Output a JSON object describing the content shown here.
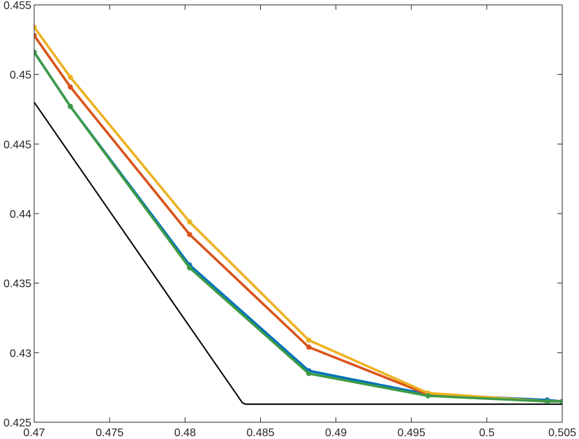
{
  "chart_data": {
    "type": "line",
    "title": "",
    "xlabel": "",
    "ylabel": "",
    "xlim": [
      0.47,
      0.505
    ],
    "ylim": [
      0.425,
      0.455
    ],
    "grid": false,
    "box": true,
    "x_ticks": [
      0.47,
      0.475,
      0.48,
      0.485,
      0.49,
      0.495,
      0.5,
      0.505
    ],
    "x_tick_labels": [
      "0.47",
      "0.475",
      "0.48",
      "0.485",
      "0.49",
      "0.495",
      "0.5",
      "0.505"
    ],
    "y_ticks": [
      0.425,
      0.43,
      0.435,
      0.44,
      0.445,
      0.45,
      0.455
    ],
    "y_tick_labels": [
      "0.425",
      "0.43",
      "0.435",
      "0.44",
      "0.445",
      "0.45",
      "0.455"
    ],
    "series": [
      {
        "color": "#000000",
        "markers": false,
        "line_width": 2,
        "x": [
          0.47,
          0.4838,
          0.484,
          0.505
        ],
        "y": [
          0.448,
          0.4264,
          0.4263,
          0.4263
        ]
      },
      {
        "color": "#0072BD",
        "markers": true,
        "line_width": 3.5,
        "x": [
          0.47,
          0.4724,
          0.4803,
          0.4882,
          0.4961,
          0.504,
          0.505
        ],
        "y": [
          0.4516,
          0.4477,
          0.4363,
          0.4287,
          0.427,
          0.4266,
          0.4265
        ]
      },
      {
        "color": "#D95319",
        "markers": true,
        "line_width": 3.5,
        "x": [
          0.47,
          0.4724,
          0.4803,
          0.4882,
          0.4961,
          0.504,
          0.505
        ],
        "y": [
          0.4528,
          0.4491,
          0.4385,
          0.4304,
          0.427,
          0.4265,
          0.4265
        ]
      },
      {
        "color": "#EDB120",
        "markers": true,
        "line_width": 3.5,
        "x": [
          0.47,
          0.4724,
          0.4803,
          0.4882,
          0.4961,
          0.504,
          0.505
        ],
        "y": [
          0.4534,
          0.4498,
          0.4394,
          0.4309,
          0.4271,
          0.4265,
          0.4265
        ]
      },
      {
        "color": "#3D9A46",
        "markers": true,
        "line_width": 3.5,
        "x": [
          0.47,
          0.4724,
          0.4803,
          0.4882,
          0.4961,
          0.504,
          0.505
        ],
        "y": [
          0.4516,
          0.4477,
          0.4361,
          0.4285,
          0.4269,
          0.4265,
          0.4265
        ]
      }
    ]
  }
}
